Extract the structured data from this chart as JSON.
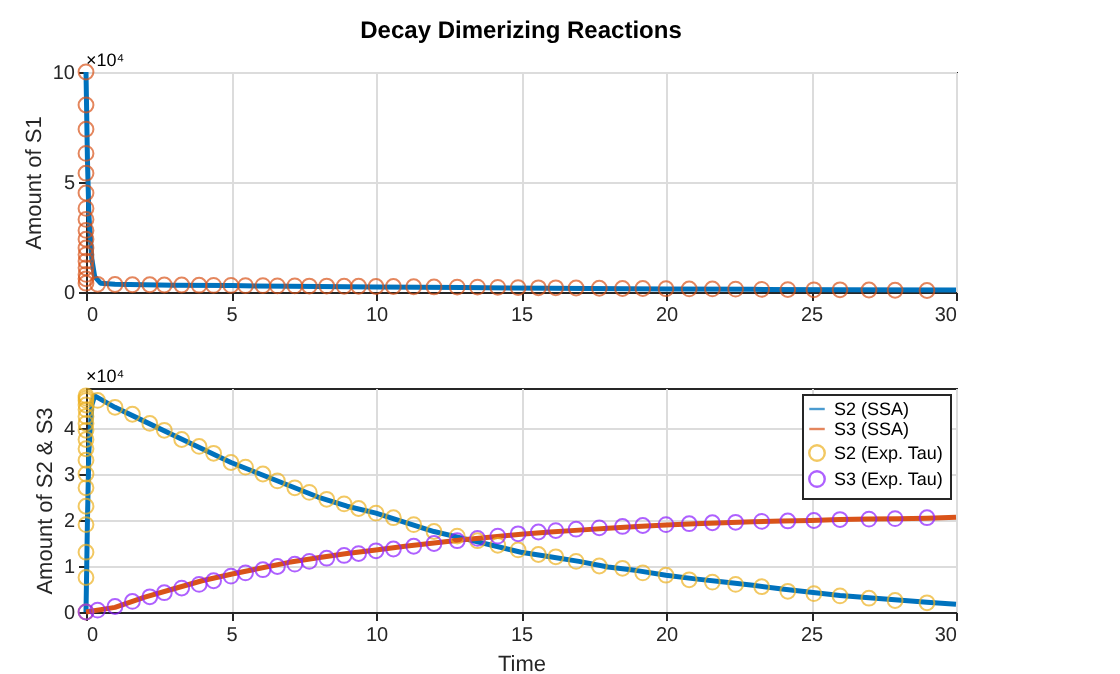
{
  "chart_data": [
    {
      "type": "line",
      "title": "Decay Dimerizing Reactions",
      "ylabel": "Amount of S1",
      "annotations": [
        "×10⁴"
      ],
      "grid": true,
      "xlim": [
        0,
        30
      ],
      "xticks": [
        0,
        5,
        10,
        15,
        20,
        25,
        30
      ],
      "ylim": [
        0,
        10
      ],
      "yticks": [
        0,
        5,
        10
      ],
      "series": [
        {
          "color": "#0072bd",
          "x": [
            0,
            0.05,
            0.1,
            0.2,
            0.3,
            0.5,
            1,
            2,
            3,
            5,
            7,
            10,
            13,
            16,
            20,
            23,
            26,
            30
          ],
          "values": [
            10,
            6,
            3.5,
            1.5,
            0.7,
            0.4,
            0.35,
            0.33,
            0.31,
            0.29,
            0.26,
            0.23,
            0.2,
            0.17,
            0.14,
            0.12,
            0.1,
            0.09
          ]
        },
        {
          "type": "scatter",
          "marker": "circle",
          "color": "#d95319",
          "x": [
            0,
            0,
            0,
            0,
            0,
            0,
            0,
            0,
            0,
            0,
            0,
            0,
            0,
            0,
            0,
            0,
            0,
            0.4,
            1.0,
            1.6,
            2.2,
            2.7,
            3.3,
            3.9,
            4.4,
            5.0,
            5.5,
            6.1,
            6.6,
            7.2,
            7.7,
            8.3,
            8.9,
            9.4,
            10.0,
            10.6,
            11.3,
            12.0,
            12.8,
            13.5,
            14.2,
            14.9,
            15.6,
            16.2,
            16.9,
            17.7,
            18.5,
            19.2,
            20.0,
            20.8,
            21.6,
            22.4,
            23.3,
            24.2,
            25.1,
            26.0,
            27.0,
            27.9,
            29.0
          ],
          "values": [
            10,
            8.5,
            7.4,
            6.3,
            5.4,
            4.5,
            3.8,
            3.3,
            2.8,
            2.4,
            2.0,
            1.7,
            1.4,
            1.1,
            0.8,
            0.6,
            0.4,
            0.35,
            0.34,
            0.33,
            0.33,
            0.32,
            0.32,
            0.31,
            0.3,
            0.3,
            0.29,
            0.29,
            0.28,
            0.28,
            0.27,
            0.27,
            0.26,
            0.26,
            0.25,
            0.25,
            0.24,
            0.23,
            0.22,
            0.22,
            0.21,
            0.2,
            0.19,
            0.19,
            0.18,
            0.17,
            0.16,
            0.16,
            0.15,
            0.14,
            0.14,
            0.13,
            0.12,
            0.11,
            0.1,
            0.1,
            0.09,
            0.08,
            0.07
          ]
        }
      ]
    },
    {
      "type": "line",
      "xlabel": "Time",
      "ylabel": "Amount of S2 & S3",
      "annotations": [
        "×10⁴"
      ],
      "grid": true,
      "legend": "top right",
      "xlim": [
        0,
        30
      ],
      "xticks": [
        0,
        5,
        10,
        15,
        20,
        25,
        30
      ],
      "ylim": [
        0,
        4.87
      ],
      "yticks": [
        0,
        1,
        2,
        3,
        4
      ],
      "series": [
        {
          "name": "S2 (SSA)",
          "color": "#0072bd",
          "x": [
            0,
            0.05,
            0.1,
            0.2,
            0.3,
            1,
            2,
            3,
            4,
            5,
            6,
            7,
            8,
            9,
            10,
            11,
            12,
            13,
            14,
            15,
            16,
            17,
            18,
            19,
            20,
            21,
            22,
            23,
            24,
            25,
            26,
            27,
            28,
            29,
            30
          ],
          "values": [
            0,
            2.0,
            3.5,
            4.5,
            4.7,
            4.45,
            4.15,
            3.85,
            3.55,
            3.25,
            3.0,
            2.75,
            2.5,
            2.3,
            2.15,
            1.95,
            1.75,
            1.6,
            1.45,
            1.3,
            1.2,
            1.1,
            0.98,
            0.9,
            0.8,
            0.72,
            0.65,
            0.58,
            0.5,
            0.43,
            0.36,
            0.31,
            0.26,
            0.21,
            0.17
          ]
        },
        {
          "name": "S3 (SSA)",
          "color": "#d95319",
          "x": [
            0,
            1,
            2,
            3,
            4,
            5,
            6,
            7,
            8,
            9,
            10,
            11,
            12,
            13,
            14,
            15,
            16,
            17,
            18,
            19,
            20,
            21,
            22,
            23,
            24,
            25,
            26,
            27,
            28,
            29,
            30
          ],
          "values": [
            0,
            0.1,
            0.32,
            0.5,
            0.68,
            0.82,
            0.95,
            1.08,
            1.18,
            1.27,
            1.35,
            1.43,
            1.5,
            1.57,
            1.63,
            1.69,
            1.74,
            1.78,
            1.82,
            1.86,
            1.89,
            1.92,
            1.94,
            1.96,
            1.98,
            1.99,
            2.01,
            2.02,
            2.03,
            2.04,
            2.06
          ]
        },
        {
          "type": "scatter",
          "marker": "circle",
          "name": "S2 (Exp. Tau)",
          "color": "#edb120",
          "x": [
            0,
            0,
            0,
            0,
            0,
            0,
            0,
            0,
            0,
            0,
            0,
            0,
            0,
            0,
            0,
            0,
            0,
            0,
            0.4,
            1.0,
            1.6,
            2.2,
            2.7,
            3.3,
            3.9,
            4.4,
            5.0,
            5.5,
            6.1,
            6.6,
            7.2,
            7.7,
            8.3,
            8.9,
            9.4,
            10.0,
            10.6,
            11.3,
            12.0,
            12.8,
            13.5,
            14.2,
            14.9,
            15.6,
            16.2,
            16.9,
            17.7,
            18.5,
            19.2,
            20.0,
            20.8,
            21.6,
            22.4,
            23.3,
            24.2,
            25.1,
            26.0,
            27.0,
            27.9,
            29.0
          ],
          "values": [
            0,
            0.75,
            1.3,
            1.9,
            2.3,
            2.7,
            3.0,
            3.3,
            3.55,
            3.75,
            3.95,
            4.1,
            4.25,
            4.4,
            4.5,
            4.6,
            4.65,
            4.7,
            4.6,
            4.45,
            4.3,
            4.1,
            3.95,
            3.75,
            3.6,
            3.45,
            3.25,
            3.15,
            3.0,
            2.85,
            2.7,
            2.6,
            2.45,
            2.35,
            2.25,
            2.15,
            2.05,
            1.9,
            1.75,
            1.65,
            1.55,
            1.45,
            1.35,
            1.25,
            1.2,
            1.1,
            1.0,
            0.95,
            0.85,
            0.8,
            0.7,
            0.65,
            0.6,
            0.55,
            0.45,
            0.4,
            0.35,
            0.3,
            0.25,
            0.2
          ]
        },
        {
          "type": "scatter",
          "marker": "circle",
          "name": "S3 (Exp. Tau)",
          "color": "#8c1eff",
          "x": [
            0,
            0.4,
            1.0,
            1.6,
            2.2,
            2.7,
            3.3,
            3.9,
            4.4,
            5.0,
            5.5,
            6.1,
            6.6,
            7.2,
            7.7,
            8.3,
            8.9,
            9.4,
            10.0,
            10.6,
            11.3,
            12.0,
            12.8,
            13.5,
            14.2,
            14.9,
            15.6,
            16.2,
            16.9,
            17.7,
            18.5,
            19.2,
            20.0,
            20.8,
            21.6,
            22.4,
            23.3,
            24.2,
            25.1,
            26.0,
            27.0,
            27.9,
            29.0
          ],
          "values": [
            0,
            0.04,
            0.12,
            0.23,
            0.33,
            0.42,
            0.52,
            0.6,
            0.68,
            0.78,
            0.85,
            0.92,
            0.99,
            1.04,
            1.1,
            1.17,
            1.23,
            1.27,
            1.33,
            1.37,
            1.43,
            1.49,
            1.55,
            1.6,
            1.65,
            1.7,
            1.74,
            1.77,
            1.8,
            1.83,
            1.86,
            1.88,
            1.9,
            1.92,
            1.94,
            1.95,
            1.97,
            1.98,
            1.99,
            2.01,
            2.02,
            2.03,
            2.05
          ]
        }
      ]
    }
  ]
}
